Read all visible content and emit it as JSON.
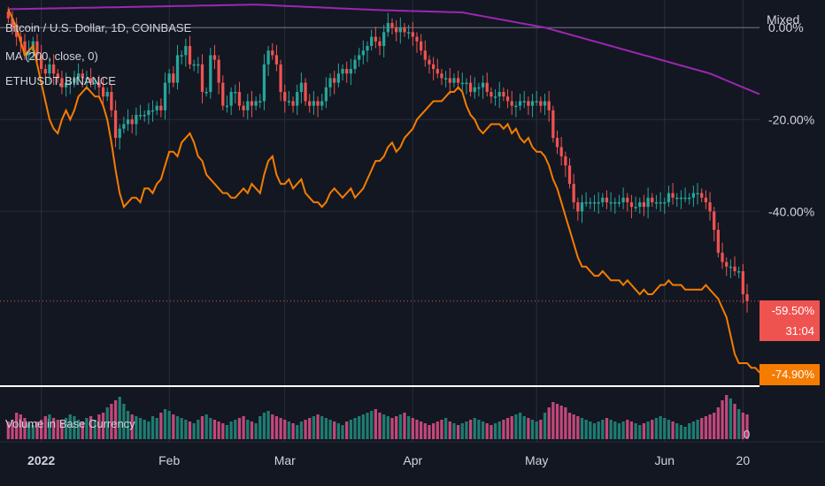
{
  "header": {
    "title": "Bitcoin / U.S. Dollar, 1D, COINBASE",
    "mode": "Mixed",
    "ma_label": "MA (200, close, 0)",
    "compare_label": "ETHUSDT, BINANCE",
    "volume_label": "Volume in Base Currency"
  },
  "badges": {
    "btc_change": "-59.50%",
    "countdown": "31:04",
    "eth_change": "-74.90%"
  },
  "colors": {
    "background": "#131722",
    "up": "#26a69a",
    "down": "#ef5350",
    "ma": "#9c27b0",
    "compare": "#f57c00",
    "volume_up": "#1f7c72",
    "volume_down": "#c2487a"
  },
  "chart_data": {
    "type": "candlestick",
    "y_axis": {
      "scale": "percent",
      "ticks": [
        "0.00%",
        "-20.00%",
        "-40.00%"
      ],
      "tick_values": [
        0,
        -20,
        -40
      ],
      "range": [
        -78,
        6
      ]
    },
    "x_axis": {
      "ticks": [
        "2022",
        "Feb",
        "Mar",
        "Apr",
        "May",
        "Jun",
        "20"
      ],
      "tick_days": [
        8,
        39,
        67,
        98,
        128,
        159,
        178
      ]
    },
    "x_range": [
      -2,
      182
    ],
    "btc_closes_pct": [
      2,
      0,
      -2,
      -3,
      -6,
      -5,
      -3,
      -6,
      -9,
      -10,
      -8,
      -10,
      -11,
      -13,
      -12,
      -12,
      -11,
      -10,
      -11,
      -11,
      -12,
      -12,
      -13,
      -15,
      -14,
      -18,
      -24,
      -22,
      -21,
      -20,
      -21,
      -19,
      -19,
      -19,
      -18,
      -18,
      -17,
      -18,
      -12,
      -10,
      -12,
      -6,
      -6,
      -4,
      -8,
      -8,
      -8,
      -14,
      -14,
      -6,
      -7,
      -12,
      -17,
      -17,
      -14,
      -14,
      -17,
      -18,
      -16,
      -17,
      -16,
      -16,
      -8,
      -5,
      -6,
      -8,
      -14,
      -16,
      -16,
      -17,
      -14,
      -12,
      -16,
      -17,
      -16,
      -17,
      -16,
      -13,
      -11,
      -12,
      -10,
      -9,
      -10,
      -9,
      -7,
      -6,
      -5,
      -4,
      -2,
      -3,
      -4,
      -1,
      1,
      0,
      -1,
      0,
      -1,
      -1,
      -2,
      -3,
      -5,
      -7,
      -8,
      -9,
      -10,
      -11,
      -11,
      -12,
      -11,
      -12,
      -12,
      -12,
      -14,
      -13,
      -13,
      -12,
      -14,
      -15,
      -15,
      -14,
      -15,
      -16,
      -17,
      -17,
      -16,
      -16,
      -17,
      -16,
      -16,
      -17,
      -16,
      -18,
      -24,
      -26,
      -28,
      -30,
      -34,
      -38,
      -40,
      -38,
      -38,
      -38,
      -38,
      -38,
      -37,
      -38,
      -38,
      -38,
      -38,
      -37,
      -38,
      -39,
      -39,
      -38,
      -39,
      -37,
      -38,
      -38,
      -38,
      -38,
      -36,
      -37,
      -37,
      -37,
      -37,
      -37,
      -36,
      -36,
      -37,
      -38,
      -40,
      -44,
      -49,
      -51,
      -52,
      -52,
      -53,
      -53,
      -58,
      -59.5
    ],
    "eth_pct": [
      4,
      2,
      0,
      -3,
      -6,
      -5,
      -4,
      -8,
      -12,
      -16,
      -20,
      -22,
      -23,
      -20,
      -18,
      -20,
      -18,
      -15,
      -14,
      -13,
      -14,
      -15,
      -15,
      -17,
      -20,
      -25,
      -31,
      -36,
      -39,
      -38,
      -37,
      -37,
      -38,
      -35,
      -35,
      -36,
      -34,
      -33,
      -30,
      -27,
      -27,
      -28,
      -25,
      -24,
      -23,
      -25,
      -28,
      -29,
      -32,
      -33,
      -34,
      -35,
      -36,
      -36,
      -37,
      -37,
      -36,
      -35,
      -36,
      -34,
      -35,
      -36,
      -32,
      -29,
      -28,
      -32,
      -34,
      -34,
      -33,
      -35,
      -34,
      -33,
      -36,
      -37,
      -38,
      -38,
      -39,
      -38,
      -36,
      -35,
      -36,
      -37,
      -36,
      -35,
      -37,
      -36,
      -35,
      -33,
      -31,
      -29,
      -29,
      -28,
      -26,
      -25,
      -27,
      -26,
      -24,
      -23,
      -22,
      -20,
      -19,
      -18,
      -17,
      -16,
      -16,
      -16,
      -15,
      -14,
      -14,
      -13,
      -14,
      -17,
      -19,
      -20,
      -22,
      -23,
      -22,
      -21,
      -21,
      -21,
      -22,
      -21,
      -23,
      -22,
      -24,
      -25,
      -24,
      -26,
      -27,
      -27,
      -28,
      -30,
      -33,
      -35,
      -38,
      -41,
      -44,
      -47,
      -50,
      -52,
      -52,
      -53,
      -54,
      -54,
      -53,
      -54,
      -55,
      -55,
      -55,
      -56,
      -55,
      -56,
      -57,
      -58,
      -57,
      -58,
      -58,
      -57,
      -56,
      -56,
      -55,
      -56,
      -56,
      -56,
      -57,
      -57,
      -57,
      -57,
      -57,
      -56,
      -57,
      -58,
      -59,
      -61,
      -63,
      -67,
      -71,
      -73,
      -73,
      -73,
      -74,
      -74,
      -75,
      -74.9
    ],
    "ma_pct_points": [
      [
        0,
        4
      ],
      [
        30,
        4.5
      ],
      [
        60,
        5
      ],
      [
        90,
        3.8
      ],
      [
        110,
        3.3
      ],
      [
        130,
        0
      ],
      [
        150,
        -5
      ],
      [
        170,
        -10
      ],
      [
        182,
        -14.5
      ]
    ],
    "volume": [
      20,
      22,
      30,
      28,
      24,
      18,
      16,
      20,
      22,
      26,
      28,
      24,
      22,
      20,
      24,
      28,
      26,
      22,
      20,
      24,
      26,
      22,
      28,
      30,
      36,
      40,
      44,
      48,
      40,
      32,
      28,
      26,
      24,
      22,
      20,
      26,
      24,
      30,
      34,
      32,
      28,
      26,
      24,
      22,
      20,
      18,
      22,
      26,
      28,
      24,
      22,
      20,
      18,
      16,
      20,
      22,
      24,
      26,
      22,
      20,
      18,
      26,
      30,
      32,
      28,
      26,
      24,
      22,
      20,
      18,
      16,
      20,
      22,
      24,
      26,
      28,
      26,
      24,
      22,
      20,
      18,
      16,
      20,
      22,
      24,
      26,
      28,
      30,
      32,
      34,
      30,
      28,
      26,
      24,
      26,
      28,
      30,
      26,
      24,
      22,
      20,
      18,
      16,
      18,
      20,
      22,
      24,
      20,
      18,
      16,
      18,
      20,
      22,
      24,
      22,
      20,
      18,
      16,
      18,
      20,
      22,
      24,
      26,
      28,
      30,
      26,
      24,
      22,
      20,
      22,
      30,
      36,
      42,
      40,
      38,
      36,
      30,
      28,
      26,
      24,
      22,
      20,
      18,
      20,
      22,
      24,
      22,
      20,
      18,
      20,
      22,
      20,
      18,
      16,
      18,
      20,
      22,
      24,
      26,
      24,
      22,
      20,
      18,
      16,
      14,
      18,
      20,
      22,
      24,
      26,
      28,
      30,
      36,
      44,
      50,
      46,
      40,
      34,
      30,
      28,
      26
    ]
  }
}
